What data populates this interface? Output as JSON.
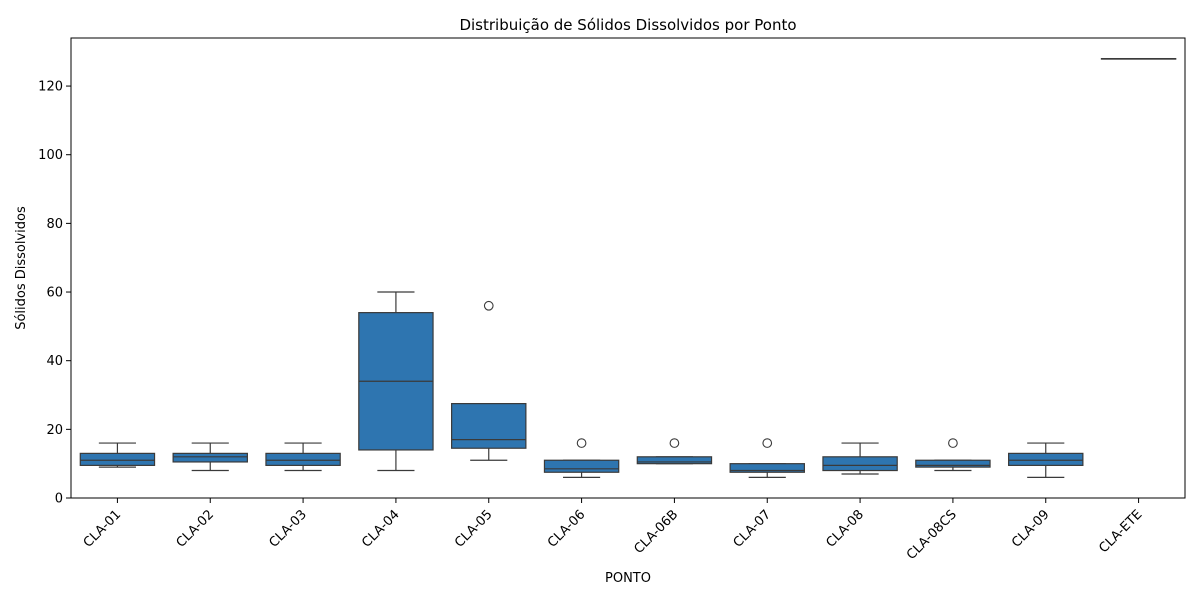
{
  "chart_data": {
    "type": "box",
    "title": "Distribuição de Sólidos Dissolvidos por Ponto",
    "xlabel": "PONTO",
    "ylabel": "Sólidos Dissolvidos",
    "ylim": [
      0,
      134
    ],
    "yticks": [
      0,
      20,
      40,
      60,
      80,
      100,
      120
    ],
    "grid": false,
    "box_color": "#2e75b0",
    "line_color": "#3a3a3a",
    "categories": [
      "CLA-01",
      "CLA-02",
      "CLA-03",
      "CLA-04",
      "CLA-05",
      "CLA-06",
      "CLA-06B",
      "CLA-07",
      "CLA-08",
      "CLA-08CS",
      "CLA-09",
      "CLA-ETE"
    ],
    "boxes": [
      {
        "category": "CLA-01",
        "whisker_low": 9,
        "q1": 9.5,
        "median": 11,
        "q3": 13,
        "whisker_high": 16,
        "outliers": []
      },
      {
        "category": "CLA-02",
        "whisker_low": 8,
        "q1": 10.5,
        "median": 12,
        "q3": 13,
        "whisker_high": 16,
        "outliers": []
      },
      {
        "category": "CLA-03",
        "whisker_low": 8,
        "q1": 9.5,
        "median": 11,
        "q3": 13,
        "whisker_high": 16,
        "outliers": []
      },
      {
        "category": "CLA-04",
        "whisker_low": 8,
        "q1": 14,
        "median": 34,
        "q3": 54,
        "whisker_high": 60,
        "outliers": []
      },
      {
        "category": "CLA-05",
        "whisker_low": 11,
        "q1": 14.5,
        "median": 17,
        "q3": 27.5,
        "whisker_high": 27.5,
        "outliers": [
          56
        ]
      },
      {
        "category": "CLA-06",
        "whisker_low": 6,
        "q1": 7.5,
        "median": 8.5,
        "q3": 11,
        "whisker_high": 11,
        "outliers": [
          16
        ]
      },
      {
        "category": "CLA-06B",
        "whisker_low": 10,
        "q1": 10,
        "median": 10.5,
        "q3": 12,
        "whisker_high": 12,
        "outliers": [
          16
        ]
      },
      {
        "category": "CLA-07",
        "whisker_low": 6,
        "q1": 7.5,
        "median": 8,
        "q3": 10,
        "whisker_high": 10,
        "outliers": [
          16
        ]
      },
      {
        "category": "CLA-08",
        "whisker_low": 7,
        "q1": 8,
        "median": 9.5,
        "q3": 12,
        "whisker_high": 16,
        "outliers": []
      },
      {
        "category": "CLA-08CS",
        "whisker_low": 8,
        "q1": 9,
        "median": 9.5,
        "q3": 11,
        "whisker_high": 11,
        "outliers": [
          16
        ]
      },
      {
        "category": "CLA-09",
        "whisker_low": 6,
        "q1": 9.5,
        "median": 11,
        "q3": 13,
        "whisker_high": 16,
        "outliers": []
      },
      {
        "category": "CLA-ETE",
        "whisker_low": 128,
        "q1": 128,
        "median": 128,
        "q3": 128,
        "whisker_high": 128,
        "outliers": []
      }
    ]
  }
}
